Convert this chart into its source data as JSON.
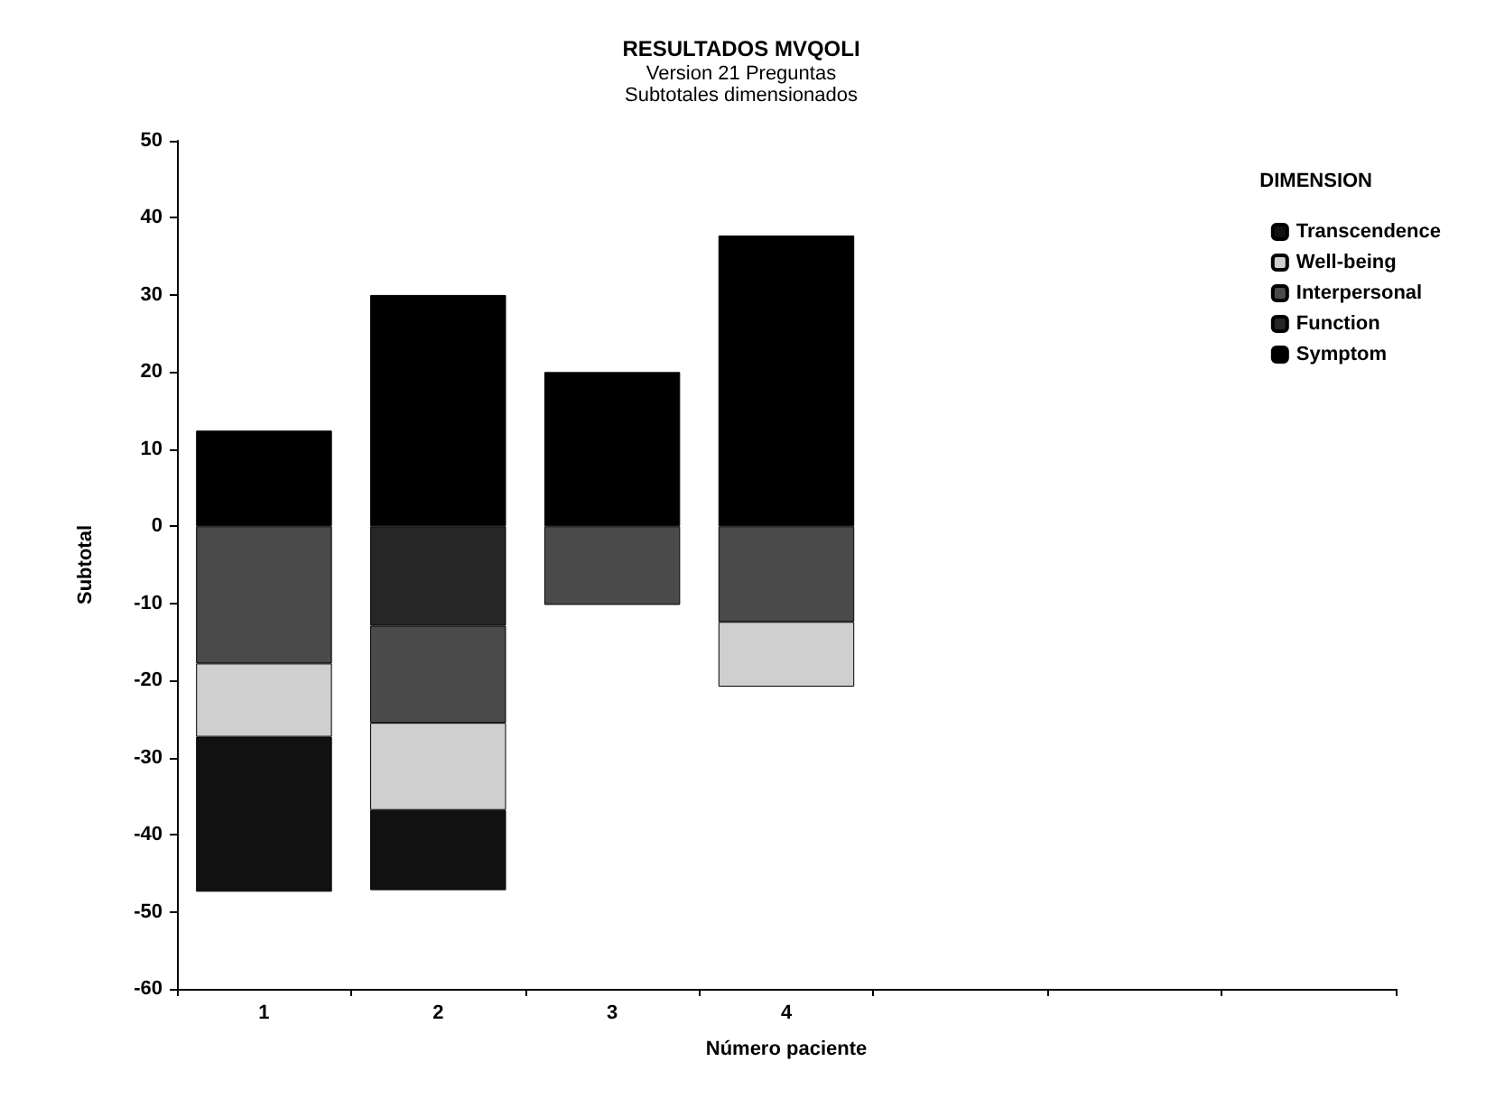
{
  "chart_data": {
    "type": "bar",
    "title": "RESULTADOS MVQOLI",
    "subtitle": "Version 21 Preguntas\nSubtotales dimensionados",
    "xlabel": "Número paciente",
    "ylabel": "Subtotal",
    "legend_title": "DIMENSION",
    "categories": [
      "1",
      "2",
      "3",
      "4",
      null,
      null,
      null
    ],
    "stacked": true,
    "series": [
      {
        "name": "Symptom",
        "color": "#000000",
        "values": [
          12.4,
          30,
          20,
          37.7,
          null,
          null,
          null
        ]
      },
      {
        "name": "Function",
        "color": "#262626",
        "values": [
          null,
          -12.9,
          null,
          null,
          null,
          null,
          null
        ]
      },
      {
        "name": "Interpersonal",
        "color": "#4a4a4a",
        "values": [
          -17.8,
          -12.6,
          -10.2,
          -12.4,
          null,
          null,
          null
        ]
      },
      {
        "name": "Well-being",
        "color": "#cfcfcf",
        "values": [
          -9.5,
          -11.3,
          null,
          -8.4,
          null,
          null,
          null
        ]
      },
      {
        "name": "Transcendence",
        "color": "#111111",
        "values": [
          -20.1,
          -10.4,
          null,
          null,
          null,
          null,
          null
        ]
      }
    ],
    "ylim": [
      -60,
      50
    ],
    "yticks": [
      -60,
      -50,
      -40,
      -30,
      -20,
      -10,
      0,
      10,
      20,
      30,
      40,
      50
    ],
    "grid": false,
    "legend": "top right"
  }
}
